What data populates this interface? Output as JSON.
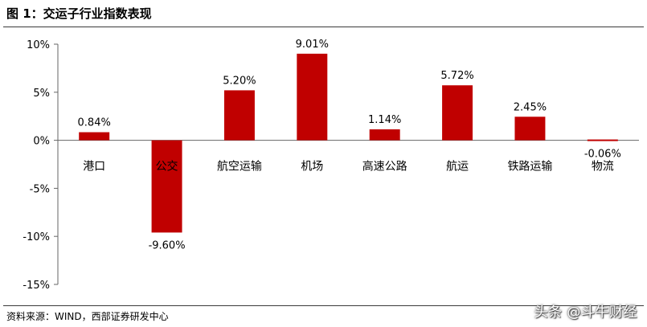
{
  "header": {
    "title": "图 1：交运子行业指数表现"
  },
  "footer": {
    "source": "资料来源：WIND，西部证券研发中心",
    "watermark": "头条 @斗牛财经"
  },
  "colors": {
    "bar": "#c00000",
    "axis": "#666666"
  },
  "chart_data": {
    "type": "bar",
    "title": "",
    "xlabel": "",
    "ylabel": "",
    "categories": [
      "港口",
      "公交",
      "航空运输",
      "机场",
      "高速公路",
      "航运",
      "铁路运输",
      "物流"
    ],
    "values": [
      0.84,
      -9.6,
      5.2,
      9.01,
      1.14,
      5.72,
      2.45,
      -0.06
    ],
    "value_labels": [
      "0.84%",
      "-9.60%",
      "5.20%",
      "9.01%",
      "1.14%",
      "5.72%",
      "2.45%",
      "-0.06%"
    ],
    "ylim": [
      -15,
      10
    ],
    "yticks": [
      10,
      5,
      0,
      -5,
      -10,
      -15
    ],
    "ytick_labels": [
      "10%",
      "5%",
      "0%",
      "-5%",
      "-10%",
      "-15%"
    ],
    "grid": false,
    "legend": "none"
  }
}
